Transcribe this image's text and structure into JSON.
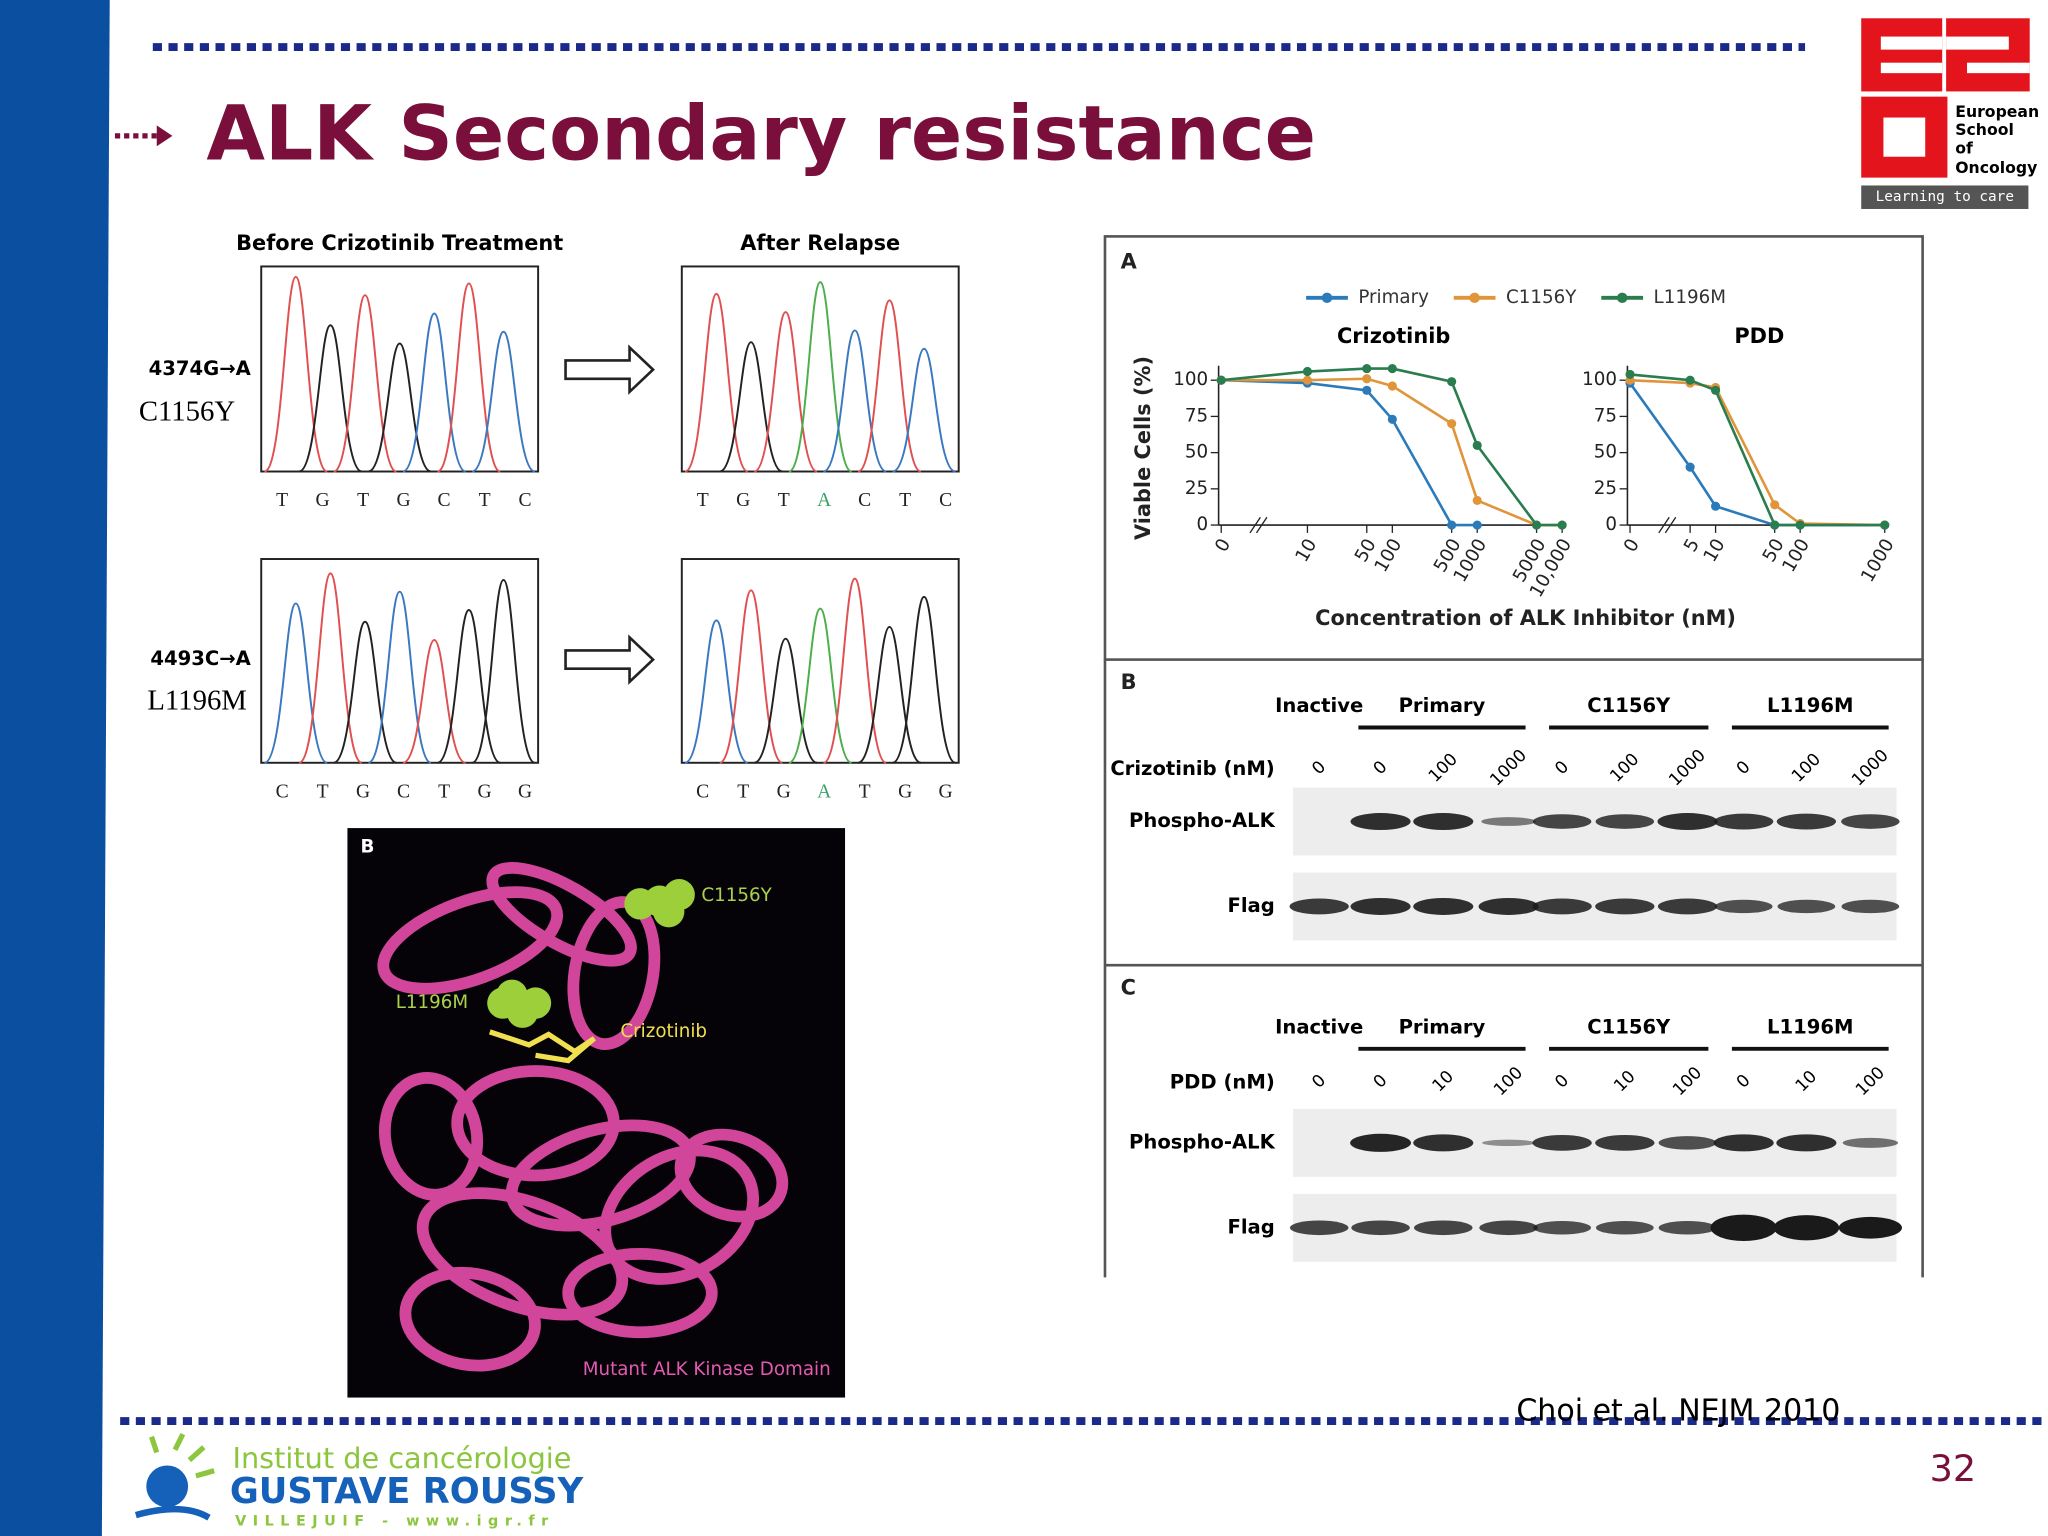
{
  "header": {
    "title": "ALK Secondary resistance"
  },
  "logo_eso": {
    "lines": [
      "European",
      "School",
      "of",
      "Oncology"
    ],
    "tagline": "Learning to care"
  },
  "sequencing": {
    "before_title": "Before Crizotinib Treatment",
    "after_title": "After Relapse",
    "rows": [
      {
        "mutation": "4374G→A",
        "variant": "C1156Y",
        "before_bases": [
          "T",
          "G",
          "T",
          "G",
          "C",
          "T",
          "C"
        ],
        "after_bases": [
          "T",
          "G",
          "T",
          "A",
          "C",
          "T",
          "C"
        ]
      },
      {
        "mutation": "4493C→A",
        "variant": "L1196M",
        "before_bases": [
          "C",
          "T",
          "G",
          "C",
          "T",
          "G",
          "G"
        ],
        "after_bases": [
          "C",
          "T",
          "G",
          "A",
          "T",
          "G",
          "G"
        ]
      }
    ]
  },
  "structure": {
    "panel": "B",
    "labels": [
      "C1156Y",
      "L1196M",
      "Crizotinib"
    ],
    "caption": "Mutant ALK Kinase Domain"
  },
  "panel_a": {
    "label": "A",
    "y_label": "Viable Cells (%)",
    "x_label": "Concentration of ALK Inhibitor (nM)"
  },
  "chart_data": [
    {
      "type": "line",
      "title": "Crizotinib",
      "xscale": "log",
      "x": [
        0,
        10,
        50,
        100,
        500,
        1000,
        5000,
        10000
      ],
      "xticks": [
        0,
        10,
        50,
        100,
        500,
        1000,
        5000,
        {
          "value": 10000,
          "label": "10,000"
        }
      ],
      "ylim": [
        0,
        110
      ],
      "yticks": [
        0,
        25,
        50,
        75,
        100
      ],
      "series": [
        {
          "name": "Primary",
          "color": "#2b7bba",
          "values": [
            100,
            98,
            93,
            73,
            0,
            0,
            null,
            null
          ]
        },
        {
          "name": "C1156Y",
          "color": "#e0953a",
          "values": [
            100,
            100,
            101,
            96,
            70,
            17,
            0,
            0
          ]
        },
        {
          "name": "L1196M",
          "color": "#2a7d4f",
          "values": [
            100,
            106,
            108,
            108,
            99,
            55,
            0,
            0
          ]
        }
      ]
    },
    {
      "type": "line",
      "title": "PDD",
      "xscale": "log",
      "x": [
        0,
        5,
        10,
        50,
        100,
        1000
      ],
      "xticks": [
        0,
        5,
        10,
        50,
        100,
        1000
      ],
      "ylim": [
        0,
        110
      ],
      "yticks": [
        0,
        25,
        50,
        75,
        100
      ],
      "series": [
        {
          "name": "Primary",
          "color": "#2b7bba",
          "values": [
            98,
            40,
            13,
            0,
            0,
            0
          ]
        },
        {
          "name": "C1156Y",
          "color": "#e0953a",
          "values": [
            100,
            98,
            95,
            14,
            1,
            0
          ]
        },
        {
          "name": "L1196M",
          "color": "#2a7d4f",
          "values": [
            104,
            100,
            93,
            0,
            0,
            0
          ]
        }
      ]
    }
  ],
  "blots": [
    {
      "label": "B",
      "groups": [
        "Inactive",
        "Primary",
        "C1156Y",
        "L1196M"
      ],
      "dose_label": "Crizotinib (nM)",
      "doses": [
        "0",
        "0",
        "100",
        "1000",
        "0",
        "100",
        "1000",
        "0",
        "100",
        "1000"
      ],
      "rows": [
        "Phospho-ALK",
        "Flag"
      ]
    },
    {
      "label": "C",
      "groups": [
        "Inactive",
        "Primary",
        "C1156Y",
        "L1196M"
      ],
      "dose_label": "PDD (nM)",
      "doses": [
        "0",
        "0",
        "10",
        "100",
        "0",
        "10",
        "100",
        "0",
        "10",
        "100"
      ],
      "rows": [
        "Phospho-ALK",
        "Flag"
      ]
    }
  ],
  "footer": {
    "citation": "Choi et al. NEJM 2010",
    "page": "32",
    "institute": [
      "Institut de cancérologie",
      "GUSTAVE ROUSSY",
      "VILLEJUIF - www.igr.fr"
    ]
  }
}
